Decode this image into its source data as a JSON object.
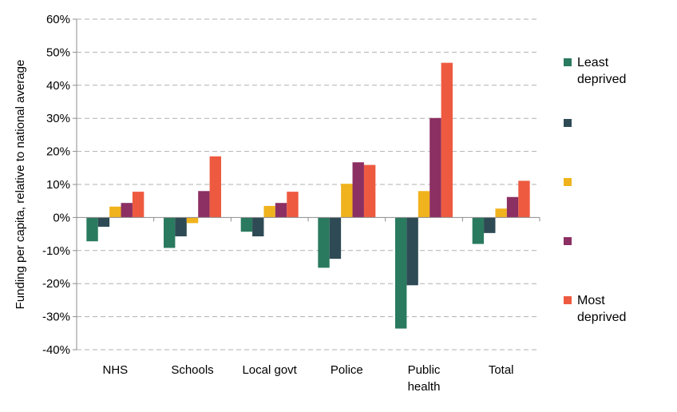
{
  "chart_data": {
    "type": "bar",
    "title": "",
    "xlabel": "",
    "ylabel": "Funding per capita, relative to national average",
    "ylim": [
      -40,
      60
    ],
    "y_ticks": [
      "-40%",
      "-30%",
      "-20%",
      "-10%",
      "0%",
      "10%",
      "20%",
      "30%",
      "40%",
      "50%",
      "60%"
    ],
    "grid": "horizontal-dashed",
    "legend_position": "right",
    "categories": [
      [
        "NHS"
      ],
      [
        "Schools"
      ],
      [
        "Local govt"
      ],
      [
        "Police"
      ],
      [
        "Public",
        "health"
      ],
      [
        "Total"
      ]
    ],
    "series": [
      {
        "name": "Least deprived",
        "legend_lines": [
          "Least",
          "deprived"
        ],
        "color": "#2a7a5f",
        "values": [
          -7.2,
          -9.2,
          -4.3,
          -15.2,
          -33.6,
          -8.0
        ]
      },
      {
        "legend_lines": [],
        "color": "#2e4b55",
        "values": [
          -2.8,
          -5.7,
          -5.7,
          -12.5,
          -20.5,
          -4.7
        ]
      },
      {
        "legend_lines": [],
        "color": "#f0b31d",
        "values": [
          3.3,
          -1.7,
          3.5,
          10.2,
          8.0,
          2.7
        ]
      },
      {
        "legend_lines": [],
        "color": "#8c2f62",
        "values": [
          4.4,
          8.0,
          4.4,
          16.7,
          30.1,
          6.2
        ]
      },
      {
        "name": "Most deprived",
        "legend_lines": [
          "Most",
          "deprived"
        ],
        "color": "#ee5a40",
        "values": [
          7.8,
          18.5,
          7.8,
          15.9,
          46.8,
          11.1
        ]
      }
    ]
  }
}
